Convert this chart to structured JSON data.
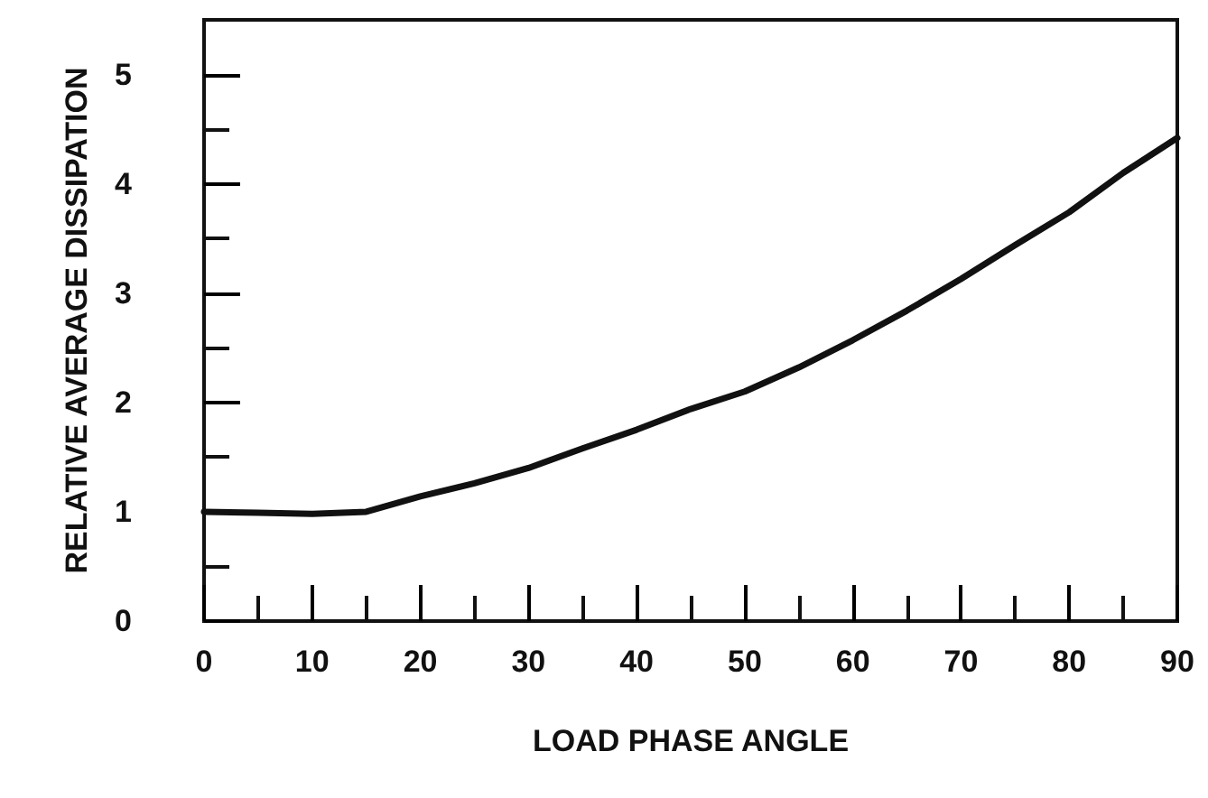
{
  "chart_data": {
    "type": "line",
    "xlabel": "LOAD PHASE ANGLE",
    "ylabel": "RELATIVE AVERAGE DISSIPATION",
    "x": [
      0,
      5,
      10,
      15,
      20,
      25,
      30,
      35,
      40,
      45,
      50,
      55,
      60,
      65,
      70,
      75,
      80,
      85,
      90
    ],
    "series": [
      {
        "color": "#111111",
        "values": [
          1.0,
          0.99,
          0.98,
          1.0,
          1.14,
          1.26,
          1.4,
          1.58,
          1.75,
          1.94,
          2.1,
          2.32,
          2.57,
          2.84,
          3.13,
          3.44,
          3.74,
          4.1,
          4.42
        ]
      }
    ],
    "xlim": [
      0,
      90
    ],
    "ylim": [
      0,
      5.5
    ],
    "xticks": [
      0,
      {
        "value": 5,
        "label": null
      },
      10,
      {
        "value": 15,
        "label": null
      },
      20,
      {
        "value": 25,
        "label": null
      },
      30,
      {
        "value": 35,
        "label": null
      },
      40,
      {
        "value": 45,
        "label": null
      },
      50,
      {
        "value": 55,
        "label": null
      },
      60,
      {
        "value": 65,
        "label": null
      },
      70,
      {
        "value": 75,
        "label": null
      },
      80,
      {
        "value": 85,
        "label": null
      },
      90
    ],
    "yticks": [
      0,
      {
        "value": 0.5,
        "label": null
      },
      1,
      {
        "value": 1.5,
        "label": null
      },
      2,
      {
        "value": 2.5,
        "label": null
      },
      3,
      {
        "value": 3.5,
        "label": null
      },
      4,
      {
        "value": 4.5,
        "label": null
      },
      5
    ],
    "grid": false,
    "marker": "none",
    "line_style": "solid"
  }
}
